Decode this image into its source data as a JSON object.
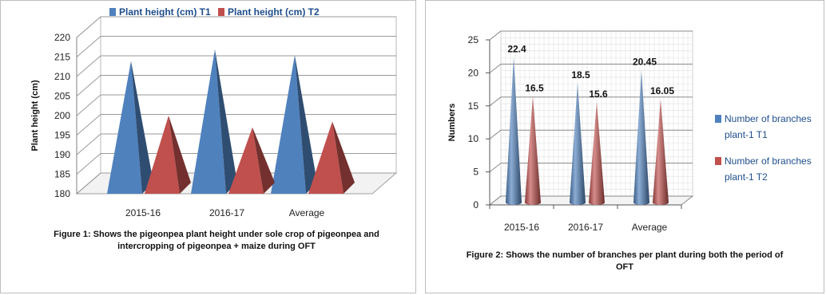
{
  "figure1": {
    "caption": "Figure 1: Shows the pigeonpea plant height under sole crop of pigeonpea and intercropping of pigeonpea + maize during OFT",
    "chart_data": {
      "type": "bar",
      "categories": [
        "2015-16",
        "2016-17",
        "Average"
      ],
      "series": [
        {
          "name": "Plant height (cm) T1",
          "values": [
            214,
            217,
            215.5
          ]
        },
        {
          "name": "Plant height (cm) T2",
          "values": [
            200,
            197,
            198.5
          ]
        }
      ],
      "ylabel": "Plant height (cm)",
      "xlabel": "",
      "ylim": [
        180,
        220
      ],
      "yticks": [
        180,
        185,
        190,
        195,
        200,
        205,
        210,
        215,
        220
      ],
      "grid": true,
      "legend": "top",
      "shape": "pyramid-3d",
      "colors": [
        "#4f81bd",
        "#c0504d"
      ]
    }
  },
  "figure2": {
    "caption": "Figure 2: Shows the number of branches per plant during both the period of OFT",
    "chart_data": {
      "type": "bar",
      "categories": [
        "2015-16",
        "2016-17",
        "Average"
      ],
      "series": [
        {
          "name": "Number of branches plant-1 T1",
          "values": [
            22.4,
            18.5,
            20.45
          ],
          "labels": [
            "22.4",
            "18.5",
            "20.45"
          ]
        },
        {
          "name": "Number of branches plant-1 T2",
          "values": [
            16.5,
            15.6,
            16.05
          ],
          "labels": [
            "16.5",
            "15.6",
            "16.05"
          ]
        }
      ],
      "ylabel": "Numbers",
      "xlabel": "",
      "ylim": [
        0,
        25
      ],
      "yticks": [
        0,
        5,
        10,
        15,
        20,
        25
      ],
      "grid": true,
      "legend": "right",
      "shape": "cone-3d",
      "colors": [
        "#4f81bd",
        "#c0504d"
      ]
    }
  }
}
